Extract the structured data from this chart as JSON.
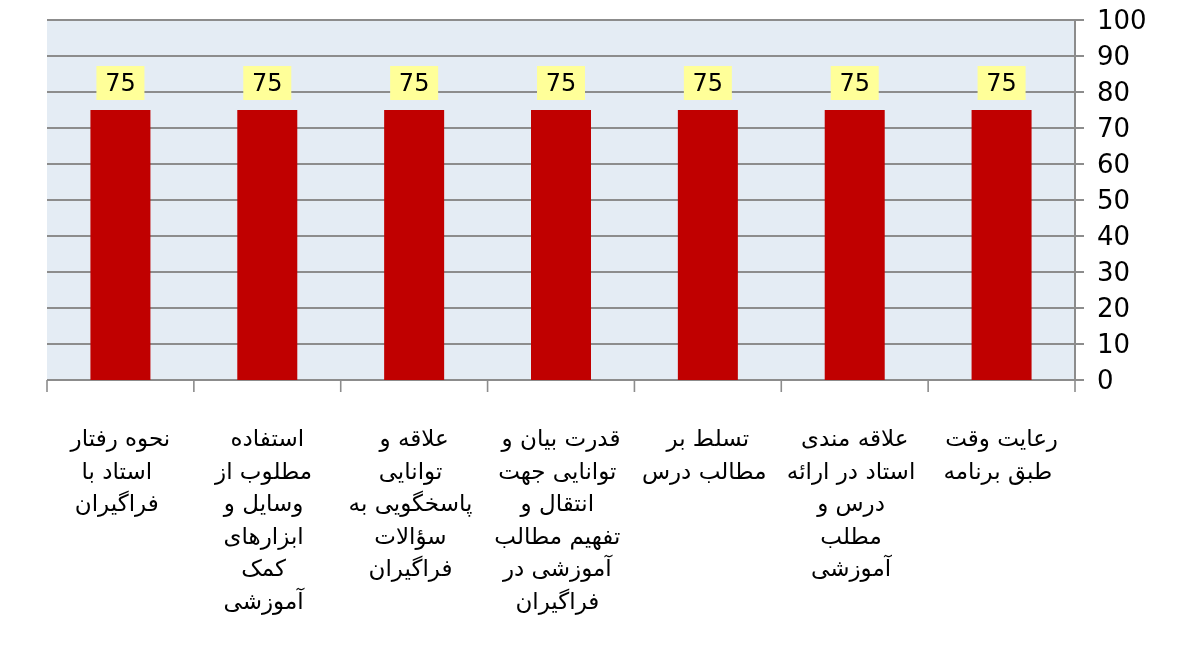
{
  "chart_data": {
    "type": "bar",
    "categories": [
      "نحوه رفتار استاد با فراگیران",
      "استفاده مطلوب از وسایل و ابزارهای کمک آموزشی",
      "علاقه و توانایی پاسخگویی به سؤالات فراگیران",
      "قدرت بیان و توانایی جهت انتقال و تفهیم مطالب آموزشی در فراگیران",
      "تسلط بر مطالب درس",
      "علاقه مندی استاد در ارائه درس و مطلب آموزشی",
      "رعایت وقت طبق برنامه"
    ],
    "values": [
      75,
      75,
      75,
      75,
      75,
      75,
      75
    ],
    "color": "#c00000",
    "ylim": [
      0,
      100
    ],
    "yticks": [
      0,
      10,
      20,
      30,
      40,
      50,
      60,
      70,
      80,
      90,
      100
    ],
    "grid": "y",
    "data_labels": true
  }
}
